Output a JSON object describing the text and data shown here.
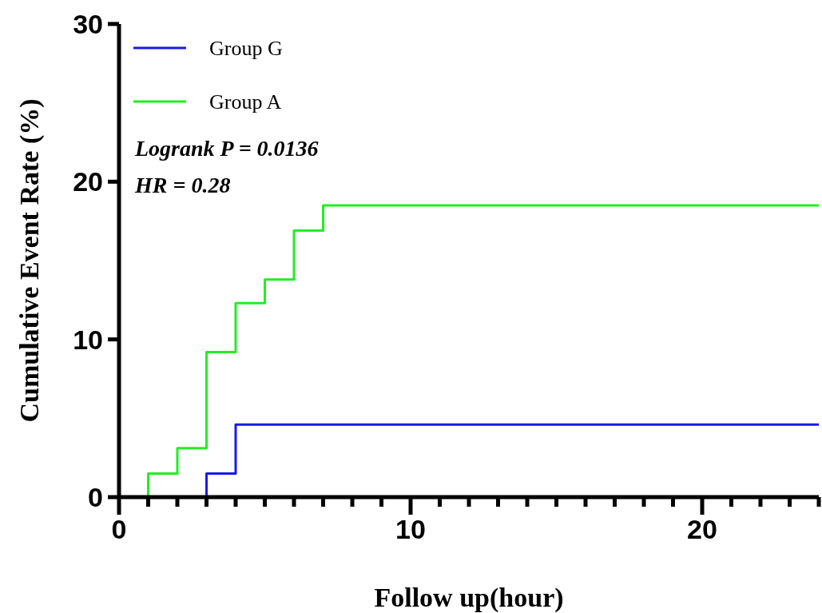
{
  "chart_data": {
    "type": "step",
    "xlabel": "Follow up(hour)",
    "ylabel": "Cumulative Event Rate (%)",
    "xlim": [
      0,
      24
    ],
    "ylim": [
      0,
      30
    ],
    "xticks": [
      0,
      {
        "value": 1,
        "label": null
      },
      {
        "value": 2,
        "label": null
      },
      {
        "value": 3,
        "label": null
      },
      {
        "value": 4,
        "label": null
      },
      {
        "value": 5,
        "label": null
      },
      {
        "value": 6,
        "label": null
      },
      {
        "value": 7,
        "label": null
      },
      {
        "value": 8,
        "label": null
      },
      {
        "value": 9,
        "label": null
      },
      10,
      {
        "value": 11,
        "label": null
      },
      {
        "value": 12,
        "label": null
      },
      {
        "value": 13,
        "label": null
      },
      {
        "value": 14,
        "label": null
      },
      {
        "value": 15,
        "label": null
      },
      {
        "value": 16,
        "label": null
      },
      {
        "value": 17,
        "label": null
      },
      {
        "value": 18,
        "label": null
      },
      {
        "value": 19,
        "label": null
      },
      20,
      {
        "value": 21,
        "label": null
      },
      {
        "value": 22,
        "label": null
      },
      {
        "value": 23,
        "label": null
      },
      {
        "value": 24,
        "label": null
      }
    ],
    "yticks": [
      0,
      10,
      20,
      30
    ],
    "series": [
      {
        "name": "Group A",
        "color": "#22ee22",
        "x": [
          0,
          1,
          2,
          3,
          4,
          5,
          6,
          7,
          24
        ],
        "values": [
          0,
          1.5,
          3.1,
          9.2,
          12.3,
          13.8,
          16.9,
          18.5,
          18.5
        ]
      },
      {
        "name": "Group G",
        "color": "#1a1ae6",
        "x": [
          0,
          3,
          4,
          24
        ],
        "values": [
          0,
          1.5,
          4.6,
          4.6
        ]
      }
    ],
    "legend": "top left",
    "grid": false,
    "annotations": [
      "Logrank P = 0.0136",
      "HR = 0.28"
    ]
  }
}
